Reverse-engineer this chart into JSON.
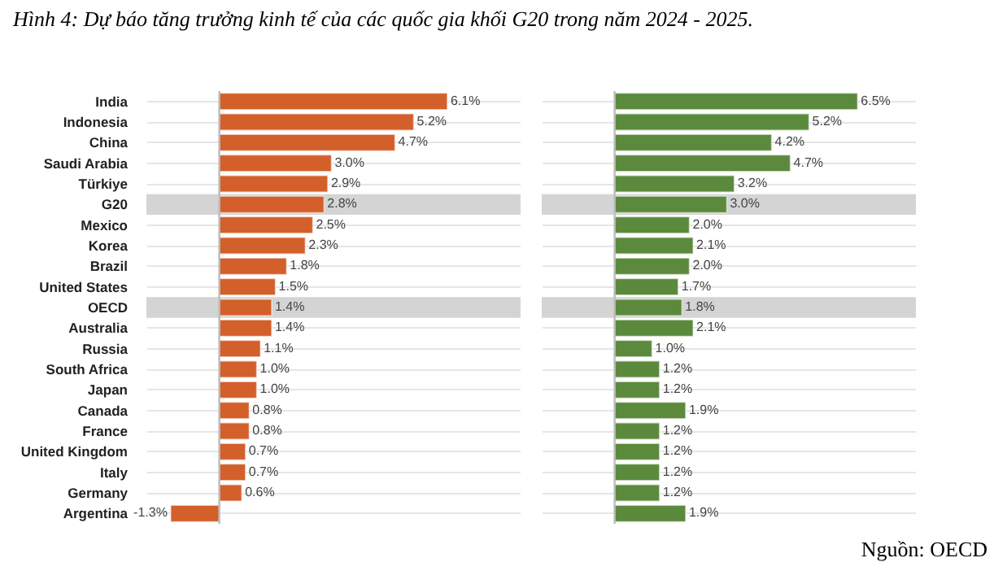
{
  "chart_data": [
    {
      "type": "bar",
      "orientation": "horizontal",
      "title": "Hình 4: Dự báo tăng trưởng kinh tế của các quốc gia khối G20 trong năm 2024 - 2025.",
      "tick_labels": "y",
      "grid": "y",
      "categories": [
        "India",
        "Indonesia",
        "China",
        "Saudi Arabia",
        "Türkiye",
        "G20",
        "Mexico",
        "Korea",
        "Brazil",
        "United States",
        "OECD",
        "Australia",
        "Russia",
        "South Africa",
        "Japan",
        "Canada",
        "France",
        "United Kingdom",
        "Italy",
        "Germany",
        "Argentina"
      ],
      "series": [
        {
          "color": "#d35f2a",
          "values": [
            6.1,
            5.2,
            4.7,
            3.0,
            2.9,
            2.8,
            2.5,
            2.3,
            1.8,
            1.5,
            1.4,
            1.4,
            1.1,
            1.0,
            1.0,
            0.8,
            0.8,
            0.7,
            0.7,
            0.6,
            -1.3
          ],
          "value_labels": [
            "6.1%",
            "5.2%",
            "4.7%",
            "3.0%",
            "2.9%",
            "2.8%",
            "2.5%",
            "2.3%",
            "1.8%",
            "1.5%",
            "1.4%",
            "1.4%",
            "1.1%",
            "1.0%",
            "1.0%",
            "0.8%",
            "0.8%",
            "0.7%",
            "0.7%",
            "0.6%",
            "-1.3%"
          ]
        }
      ],
      "bands": [
        {
          "axis": "y",
          "from": "G20",
          "to": "G20",
          "color": "#d4d4d4"
        },
        {
          "axis": "y",
          "from": "OECD",
          "to": "OECD",
          "color": "#d4d4d4"
        }
      ]
    },
    {
      "type": "bar",
      "orientation": "horizontal",
      "tick_labels": false,
      "grid": "y",
      "annotations": [
        "Nguồn: OECD"
      ],
      "categories": [
        "India",
        "Indonesia",
        "China",
        "Saudi Arabia",
        "Türkiye",
        "G20",
        "Mexico",
        "Korea",
        "Brazil",
        "United States",
        "OECD",
        "Australia",
        "Russia",
        "South Africa",
        "Japan",
        "Canada",
        "France",
        "United Kingdom",
        "Italy",
        "Germany",
        "Argentina"
      ],
      "series": [
        {
          "color": "#5b8a3c",
          "values": [
            6.5,
            5.2,
            4.2,
            4.7,
            3.2,
            3.0,
            2.0,
            2.1,
            2.0,
            1.7,
            1.8,
            2.1,
            1.0,
            1.2,
            1.2,
            1.9,
            1.2,
            1.2,
            1.2,
            1.2,
            1.9
          ],
          "value_labels": [
            "6.5%",
            "5.2%",
            "4.2%",
            "4.7%",
            "3.2%",
            "3.0%",
            "2.0%",
            "2.1%",
            "2.0%",
            "1.7%",
            "1.8%",
            "2.1%",
            "1.0%",
            "1.2%",
            "1.2%",
            "1.9%",
            "1.2%",
            "1.2%",
            "1.2%",
            "1.2%",
            "1.9%"
          ]
        }
      ],
      "bands": [
        {
          "axis": "y",
          "from": "G20",
          "to": "G20",
          "color": "#d4d4d4"
        },
        {
          "axis": "y",
          "from": "OECD",
          "to": "OECD",
          "color": "#d4d4d4"
        }
      ]
    }
  ]
}
